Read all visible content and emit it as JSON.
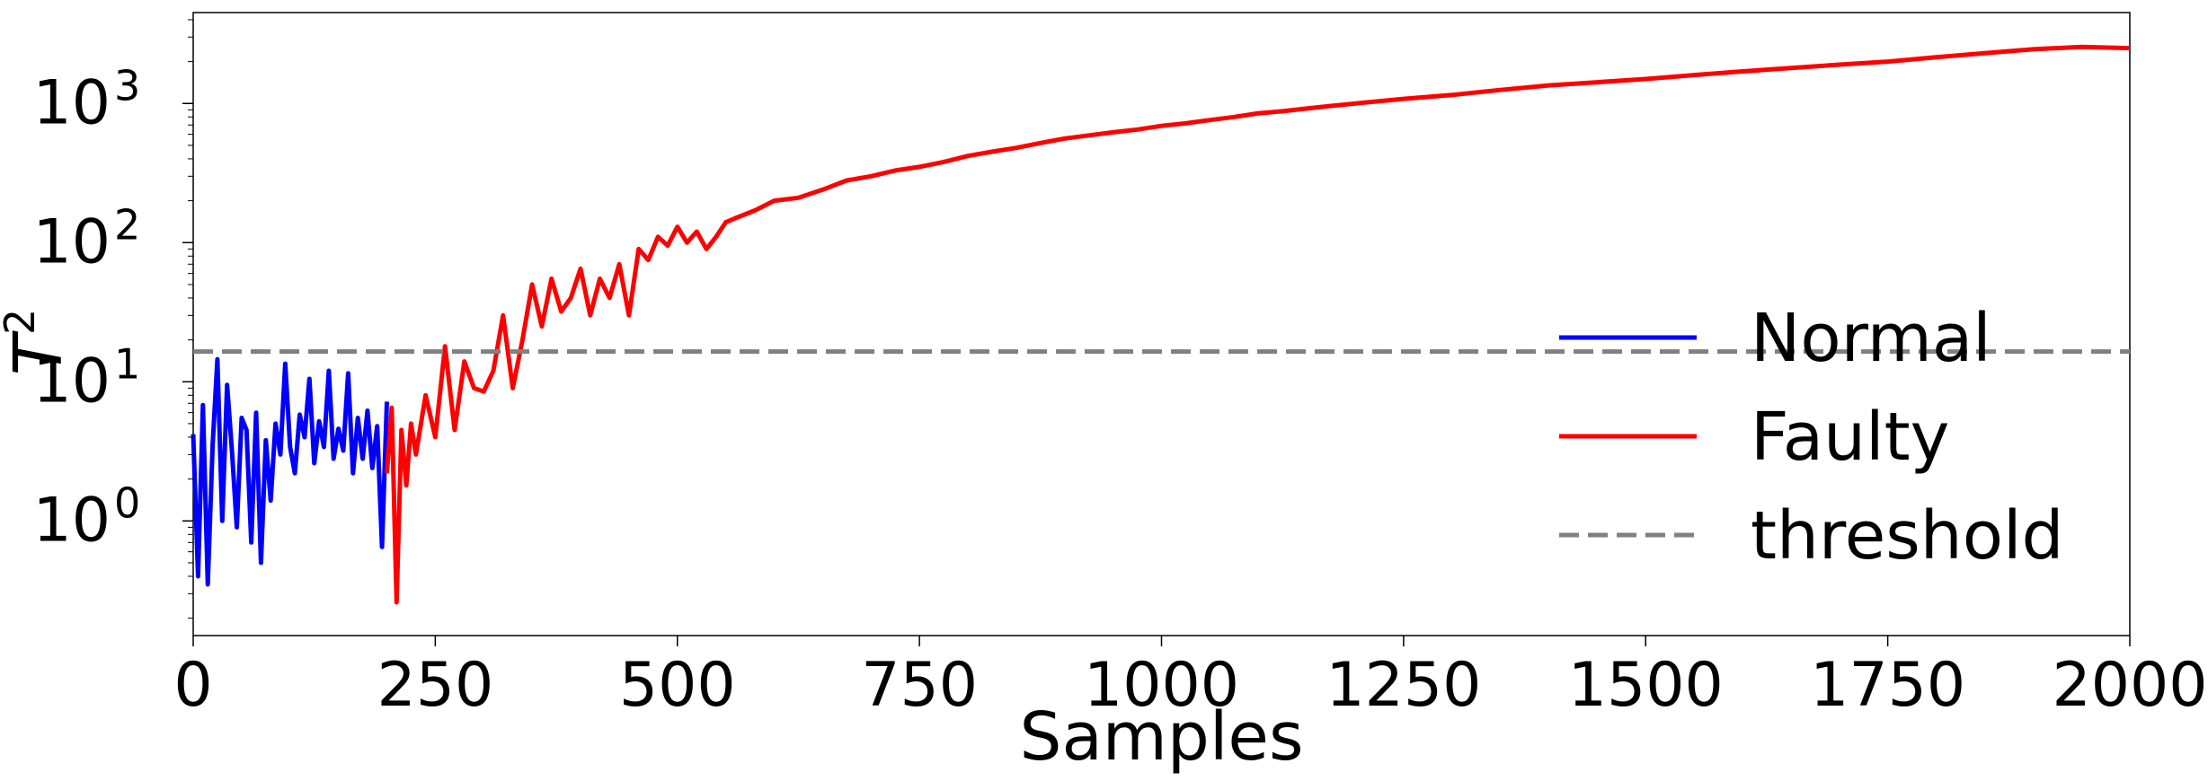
{
  "chart_data": {
    "type": "line",
    "xlabel": "Samples",
    "ylabel": "T",
    "ylabel_superscript": "2",
    "xlim": [
      0,
      2000
    ],
    "ylim": [
      0.15,
      4500
    ],
    "yscale": "log",
    "x_ticks": [
      0,
      250,
      500,
      750,
      1000,
      1250,
      1500,
      1750,
      2000
    ],
    "x_tick_labels": [
      "0",
      "250",
      "500",
      "750",
      "1000",
      "1250",
      "1500",
      "1750",
      "2000"
    ],
    "y_ticks": [
      1,
      10,
      100,
      1000
    ],
    "y_tick_base": "10",
    "y_tick_exponents": [
      "0",
      "1",
      "2",
      "3"
    ],
    "grid": false,
    "legend_position": "center-right",
    "series": [
      {
        "name": "Normal",
        "color": "#0000ff",
        "line": "solid",
        "x": [
          0,
          5,
          10,
          15,
          20,
          25,
          30,
          35,
          40,
          45,
          50,
          55,
          60,
          65,
          70,
          75,
          80,
          85,
          90,
          95,
          100,
          105,
          110,
          115,
          120,
          125,
          130,
          135,
          140,
          145,
          150,
          155,
          160,
          165,
          170,
          175,
          180,
          185,
          190,
          195,
          200
        ],
        "y": [
          4.2,
          0.4,
          6.8,
          0.35,
          3.5,
          14.5,
          1.0,
          9.5,
          3.2,
          0.9,
          5.5,
          4.5,
          0.7,
          6.0,
          0.5,
          3.8,
          1.4,
          5.0,
          3.0,
          13.5,
          3.4,
          2.2,
          5.8,
          4.0,
          10.5,
          2.6,
          5.2,
          3.4,
          12.0,
          2.8,
          4.6,
          3.2,
          11.5,
          2.2,
          5.5,
          2.8,
          6.2,
          2.4,
          4.8,
          0.65,
          7.2
        ]
      },
      {
        "name": "Faulty",
        "color": "#ff0000",
        "line": "solid",
        "x": [
          200,
          205,
          210,
          215,
          220,
          225,
          230,
          240,
          250,
          260,
          270,
          280,
          290,
          300,
          310,
          320,
          330,
          340,
          350,
          360,
          370,
          380,
          390,
          400,
          410,
          420,
          430,
          440,
          450,
          460,
          470,
          480,
          490,
          500,
          510,
          520,
          530,
          540,
          550,
          560,
          580,
          600,
          625,
          650,
          675,
          700,
          725,
          750,
          775,
          800,
          825,
          850,
          875,
          900,
          925,
          950,
          975,
          1000,
          1025,
          1050,
          1075,
          1100,
          1125,
          1150,
          1175,
          1200,
          1250,
          1300,
          1350,
          1400,
          1450,
          1500,
          1550,
          1600,
          1650,
          1700,
          1750,
          1800,
          1850,
          1900,
          1950,
          2000
        ],
        "y": [
          2.2,
          6.5,
          0.26,
          4.5,
          1.8,
          5.0,
          3.0,
          8.0,
          4.0,
          18.0,
          4.5,
          14.0,
          9.0,
          8.5,
          12.0,
          30.0,
          9.0,
          20.0,
          50.0,
          25.0,
          55.0,
          32.0,
          40.0,
          65.0,
          30.0,
          55.0,
          40.0,
          70.0,
          30.0,
          90.0,
          75.0,
          110.0,
          95.0,
          130.0,
          100.0,
          120.0,
          90.0,
          110.0,
          140.0,
          150.0,
          170.0,
          200.0,
          210.0,
          240.0,
          280.0,
          300.0,
          330.0,
          350.0,
          380.0,
          420.0,
          450.0,
          480.0,
          520.0,
          560.0,
          590.0,
          620.0,
          650.0,
          690.0,
          720.0,
          760.0,
          800.0,
          850.0,
          880.0,
          920.0,
          960.0,
          1000.0,
          1080.0,
          1150.0,
          1250.0,
          1350.0,
          1420.0,
          1500.0,
          1600.0,
          1700.0,
          1800.0,
          1900.0,
          2000.0,
          2150.0,
          2300.0,
          2450.0,
          2550.0,
          2500.0
        ]
      },
      {
        "name": "threshold",
        "color": "#808080",
        "line": "dashed",
        "x": [
          0,
          2000
        ],
        "y": [
          16.5,
          16.5
        ]
      }
    ]
  }
}
